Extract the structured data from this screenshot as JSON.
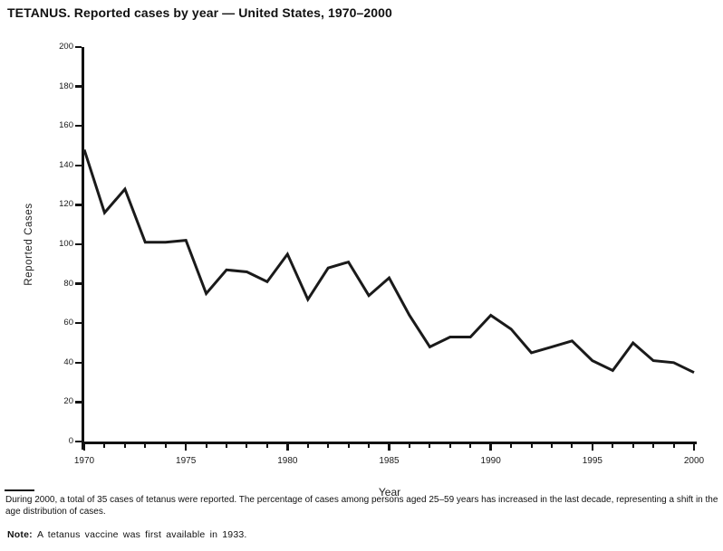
{
  "title": "TETANUS. Reported cases by year — United States, 1970–2000",
  "footnote": "During 2000, a total of 35 cases of tetanus were reported. The percentage of cases among persons aged 25–59 years has increased in the last decade, representing a shift in the age distribution of cases.",
  "note": {
    "label": "Note:",
    "text": "A tetanus vaccine was first available in 1933."
  },
  "chart_data": {
    "type": "line",
    "title": "TETANUS. Reported cases by year — United States, 1970–2000",
    "xlabel": "Year",
    "ylabel": "Reported Cases",
    "x": [
      1970,
      1971,
      1972,
      1973,
      1974,
      1975,
      1976,
      1977,
      1978,
      1979,
      1980,
      1981,
      1982,
      1983,
      1984,
      1985,
      1986,
      1987,
      1988,
      1989,
      1990,
      1991,
      1992,
      1993,
      1994,
      1995,
      1996,
      1997,
      1998,
      1999,
      2000
    ],
    "values": [
      148,
      116,
      128,
      101,
      101,
      102,
      75,
      87,
      86,
      81,
      95,
      72,
      88,
      91,
      74,
      83,
      64,
      48,
      53,
      53,
      64,
      57,
      45,
      48,
      51,
      41,
      36,
      50,
      41,
      40,
      35
    ],
    "xlim": [
      1970,
      2000
    ],
    "ylim": [
      0,
      200
    ],
    "y_ticks": [
      0,
      20,
      40,
      60,
      80,
      100,
      120,
      140,
      160,
      180,
      200
    ],
    "x_minor_tick_step": 1,
    "x_major_ticks": [
      1970,
      1975,
      1980,
      1985,
      1990,
      1995,
      2000
    ],
    "grid": false,
    "legend": "none",
    "line_color": "#1a1a1a",
    "background_color": "#ffffff"
  }
}
